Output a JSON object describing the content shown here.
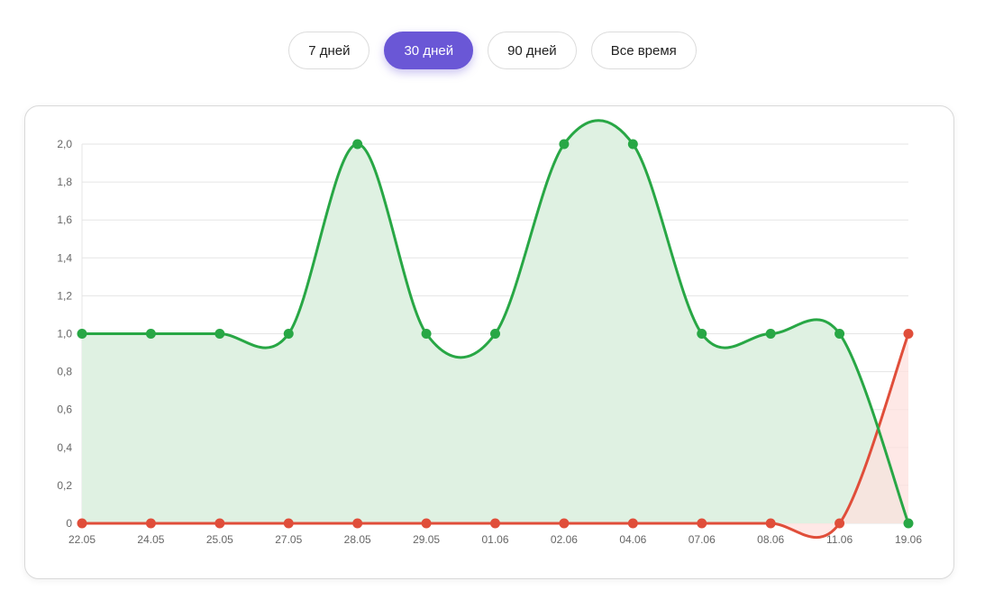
{
  "range_buttons": [
    {
      "label": "7 дней",
      "active": false
    },
    {
      "label": "30 дней",
      "active": true
    },
    {
      "label": "90 дней",
      "active": false
    },
    {
      "label": "Все время",
      "active": false
    }
  ],
  "colors": {
    "accent": "#6a57d6",
    "series_green": "#28a745",
    "series_red": "#e04e3a",
    "fill_green": "#dff1e2",
    "fill_red": "#fde0de",
    "grid": "#e5e5e5"
  },
  "chart_data": {
    "type": "line",
    "categories": [
      "22.05",
      "24.05",
      "25.05",
      "27.05",
      "28.05",
      "29.05",
      "01.06",
      "02.06",
      "04.06",
      "07.06",
      "08.06",
      "11.06",
      "19.06"
    ],
    "series": [
      {
        "color": "#28a745",
        "fill": "#dff1e2",
        "values": [
          1,
          1,
          1,
          1,
          2,
          1,
          1,
          2,
          2,
          1,
          1,
          1,
          0
        ]
      },
      {
        "color": "#e04e3a",
        "fill": "#fde0de",
        "values": [
          0,
          0,
          0,
          0,
          0,
          0,
          0,
          0,
          0,
          0,
          0,
          0,
          1
        ]
      }
    ],
    "ylim": [
      0,
      2
    ],
    "y_ticks": [
      "0",
      "0,2",
      "0,4",
      "0,6",
      "0,8",
      "1,0",
      "1,2",
      "1,4",
      "1,6",
      "1,8",
      "2,0"
    ],
    "y_tick_values": [
      0,
      0.2,
      0.4,
      0.6,
      0.8,
      1.0,
      1.2,
      1.4,
      1.6,
      1.8,
      2.0
    ],
    "grid": true,
    "legend": "none",
    "area_fill": true,
    "smooth": true
  }
}
